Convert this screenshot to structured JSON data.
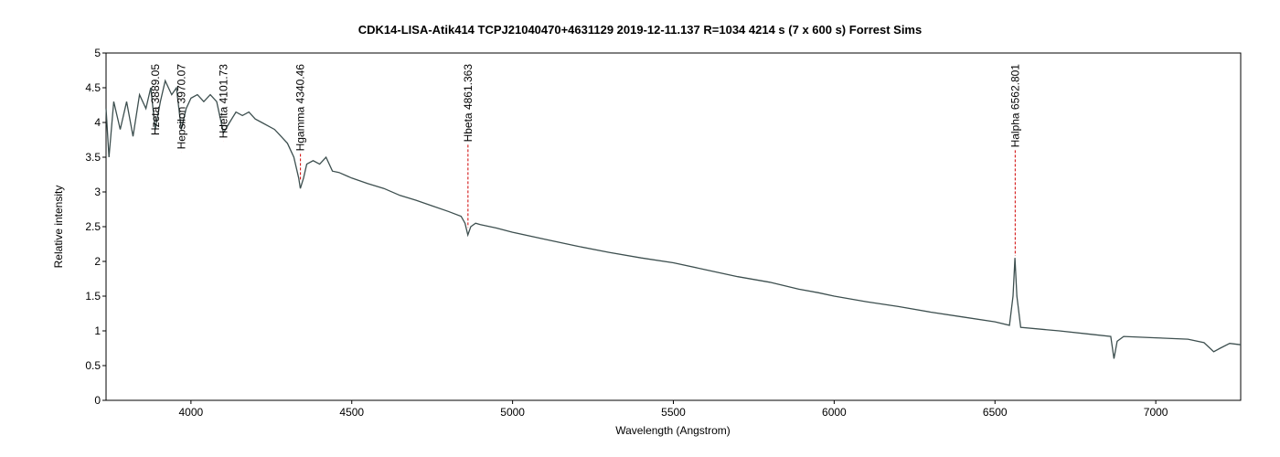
{
  "chart_data": {
    "type": "line",
    "title": "CDK14-LISA-Atik414 TCPJ21040470+4631129   2019-12-11.137 R=1034  4214 s (7 x 600 s)   Forrest Sims",
    "x_label": "Wavelength (Angstrom)",
    "y_label": "Relative intensity",
    "xlim": [
      3736,
      7264
    ],
    "ylim": [
      0,
      5
    ],
    "xticks": [
      4000,
      4500,
      5000,
      5500,
      6000,
      6500,
      7000
    ],
    "yticks": [
      0,
      0.5,
      1,
      1.5,
      2,
      2.5,
      3,
      3.5,
      4,
      4.5,
      5
    ],
    "grid": false,
    "series": [
      {
        "color": "#3d4f4f",
        "x": [
          3736,
          3745,
          3760,
          3780,
          3800,
          3820,
          3840,
          3860,
          3875,
          3889,
          3905,
          3920,
          3940,
          3955,
          3970,
          3985,
          4000,
          4020,
          4040,
          4060,
          4080,
          4101,
          4120,
          4140,
          4160,
          4180,
          4200,
          4220,
          4240,
          4260,
          4280,
          4300,
          4320,
          4335,
          4340,
          4350,
          4360,
          4380,
          4400,
          4420,
          4440,
          4460,
          4500,
          4550,
          4600,
          4650,
          4700,
          4750,
          4800,
          4840,
          4852,
          4861,
          4870,
          4885,
          4900,
          4950,
          5000,
          5100,
          5200,
          5300,
          5400,
          5500,
          5600,
          5700,
          5800,
          5890,
          5950,
          6000,
          6100,
          6200,
          6300,
          6400,
          6500,
          6545,
          6556,
          6562,
          6568,
          6580,
          6700,
          6800,
          6860,
          6870,
          6880,
          6900,
          7000,
          7100,
          7150,
          7180,
          7200,
          7230,
          7264
        ],
        "values": [
          4.2,
          3.5,
          4.3,
          3.9,
          4.3,
          3.8,
          4.4,
          4.2,
          4.5,
          3.9,
          4.3,
          4.6,
          4.4,
          4.5,
          3.9,
          4.2,
          4.35,
          4.4,
          4.3,
          4.4,
          4.3,
          3.85,
          4.0,
          4.15,
          4.1,
          4.15,
          4.05,
          4.0,
          3.95,
          3.9,
          3.8,
          3.7,
          3.5,
          3.2,
          3.05,
          3.2,
          3.4,
          3.45,
          3.4,
          3.5,
          3.3,
          3.28,
          3.2,
          3.12,
          3.05,
          2.95,
          2.88,
          2.8,
          2.72,
          2.65,
          2.55,
          2.38,
          2.5,
          2.55,
          2.53,
          2.48,
          2.42,
          2.32,
          2.22,
          2.13,
          2.05,
          1.98,
          1.88,
          1.78,
          1.7,
          1.6,
          1.55,
          1.5,
          1.42,
          1.35,
          1.27,
          1.2,
          1.13,
          1.08,
          1.5,
          2.05,
          1.5,
          1.05,
          1.0,
          0.95,
          0.92,
          0.6,
          0.85,
          0.92,
          0.9,
          0.88,
          0.83,
          0.7,
          0.75,
          0.82,
          0.8
        ]
      }
    ],
    "annotations": [
      {
        "text": "Hzeta 3889.05",
        "x": 3889.05
      },
      {
        "text": "Hepsilon 3970.07",
        "x": 3970.07
      },
      {
        "text": "Hdelta 4101.73",
        "x": 4101.73
      },
      {
        "text": "Hgamma 4340.46",
        "x": 4340.46
      },
      {
        "text": "Hbeta 4861.363",
        "x": 4861.363
      },
      {
        "text": "Halpha 6562.801",
        "x": 6562.801
      }
    ]
  }
}
